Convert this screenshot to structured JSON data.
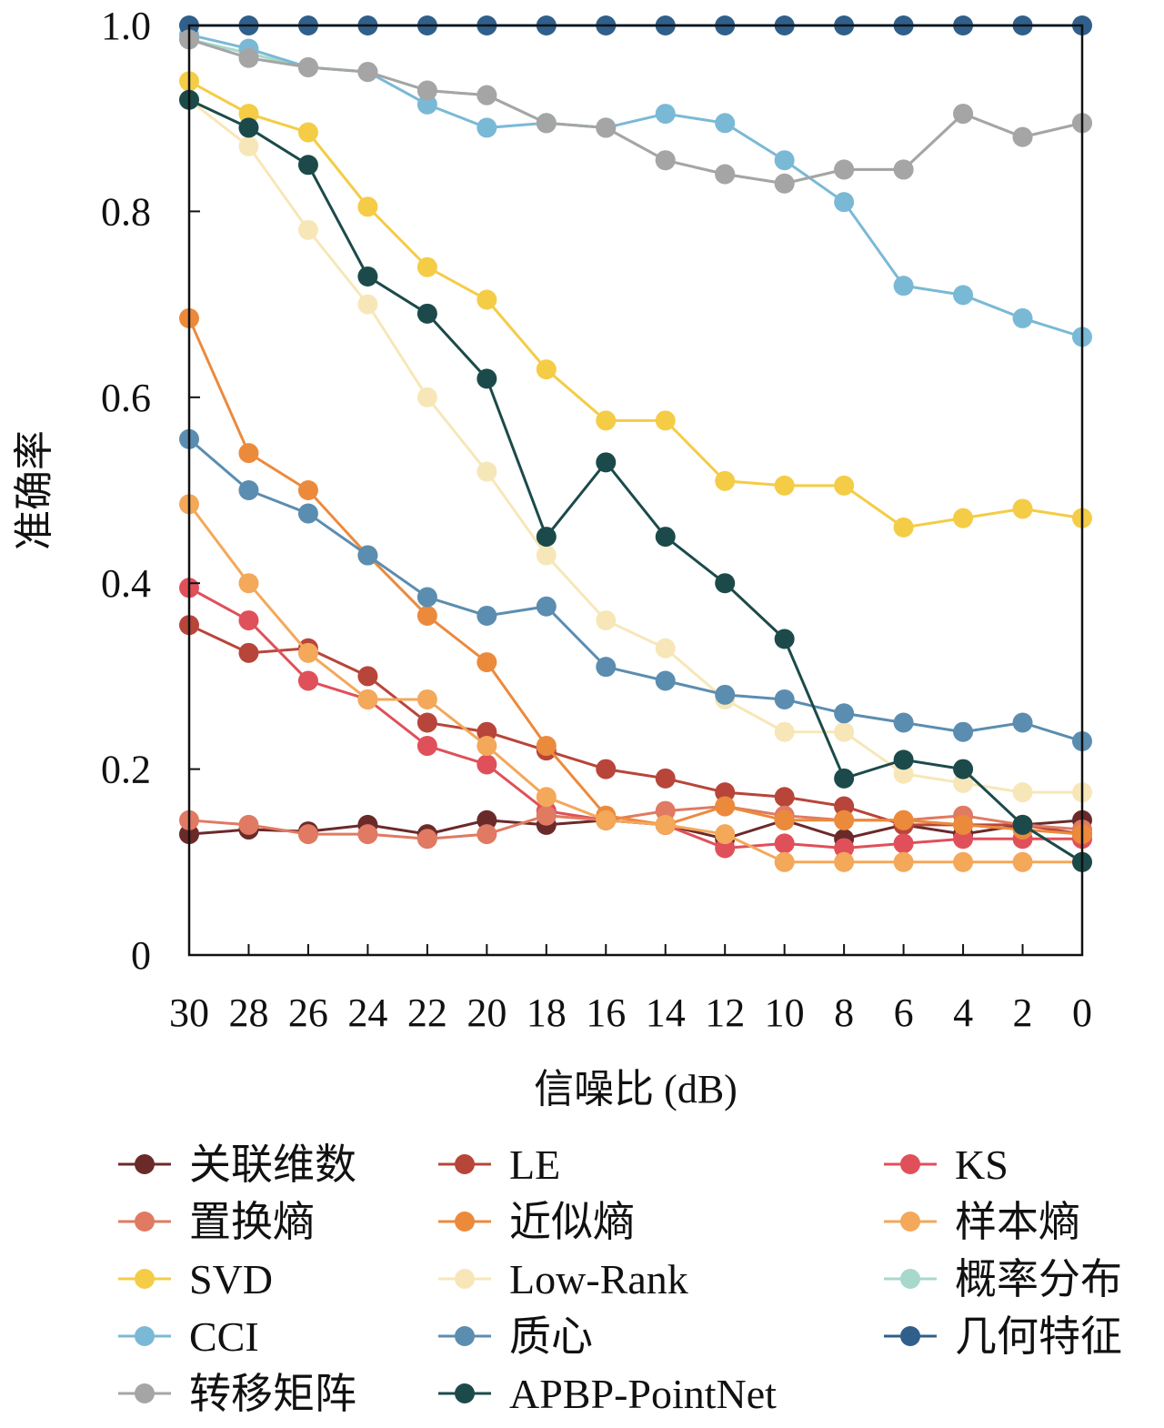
{
  "chart_data": {
    "type": "line",
    "xlabel": "信噪比 (dB)",
    "ylabel": "准确率",
    "x": [
      30,
      28,
      26,
      24,
      22,
      20,
      18,
      16,
      14,
      12,
      10,
      8,
      6,
      4,
      2,
      0
    ],
    "x_tick_labels": [
      "30",
      "28",
      "26",
      "24",
      "22",
      "20",
      "18",
      "16",
      "14",
      "12",
      "10",
      "8",
      "6",
      "4",
      "2",
      "0"
    ],
    "ylim": [
      0,
      1
    ],
    "y_ticks": [
      0,
      0.2,
      0.4,
      0.6,
      0.8,
      1.0
    ],
    "y_tick_labels": [
      "0",
      "0.2",
      "0.4",
      "0.6",
      "0.8",
      "1.0"
    ],
    "x_reversed": true,
    "grid": false,
    "legend_position": "bottom",
    "series": [
      {
        "name": "关联维数",
        "color": "#6b2a2a",
        "values": [
          0.13,
          0.135,
          0.133,
          0.14,
          0.13,
          0.145,
          0.14,
          0.145,
          0.14,
          0.125,
          0.145,
          0.125,
          0.14,
          0.13,
          0.14,
          0.145
        ]
      },
      {
        "name": "LE",
        "color": "#b8453a",
        "values": [
          0.355,
          0.325,
          0.33,
          0.3,
          0.25,
          0.24,
          0.22,
          0.2,
          0.19,
          0.175,
          0.17,
          0.16,
          0.14,
          0.14,
          0.14,
          0.13
        ]
      },
      {
        "name": "KS",
        "color": "#e0505a",
        "values": [
          0.395,
          0.36,
          0.295,
          0.275,
          0.225,
          0.205,
          0.155,
          0.145,
          0.14,
          0.115,
          0.12,
          0.115,
          0.12,
          0.125,
          0.125,
          0.125
        ]
      },
      {
        "name": "置换熵",
        "color": "#e07a62",
        "values": [
          0.145,
          0.14,
          0.13,
          0.13,
          0.125,
          0.13,
          0.15,
          0.145,
          0.155,
          0.16,
          0.15,
          0.145,
          0.145,
          0.15,
          0.14,
          0.135
        ]
      },
      {
        "name": "近似熵",
        "color": "#ec8a3c",
        "values": [
          0.685,
          0.54,
          0.5,
          0.43,
          0.365,
          0.315,
          0.225,
          0.15,
          0.14,
          0.16,
          0.145,
          0.145,
          0.145,
          0.14,
          0.135,
          0.13
        ]
      },
      {
        "name": "样本熵",
        "color": "#f3a85a",
        "values": [
          0.485,
          0.4,
          0.325,
          0.275,
          0.275,
          0.225,
          0.17,
          0.145,
          0.14,
          0.13,
          0.1,
          0.1,
          0.1,
          0.1,
          0.1,
          0.1
        ]
      },
      {
        "name": "SVD",
        "color": "#f4cc46",
        "values": [
          0.94,
          0.905,
          0.885,
          0.805,
          0.74,
          0.705,
          0.63,
          0.575,
          0.575,
          0.51,
          0.505,
          0.505,
          0.46,
          0.47,
          0.48,
          0.47
        ]
      },
      {
        "name": "Low-Rank",
        "color": "#f7e7b8",
        "values": [
          0.92,
          0.87,
          0.78,
          0.7,
          0.6,
          0.52,
          0.43,
          0.36,
          0.33,
          0.275,
          0.24,
          0.24,
          0.195,
          0.185,
          0.175,
          0.175
        ]
      },
      {
        "name": "概率分布",
        "color": "#a8d8cb",
        "values": [
          0.985,
          0.97,
          0.955,
          0.95,
          0.93,
          0.925,
          0.895,
          0.89,
          0.855,
          0.84,
          0.83,
          0.845,
          0.845,
          0.905,
          0.88,
          0.895
        ]
      },
      {
        "name": "CCI",
        "color": "#7ab9d6",
        "values": [
          0.99,
          0.975,
          0.955,
          0.95,
          0.915,
          0.89,
          0.895,
          0.89,
          0.905,
          0.895,
          0.855,
          0.81,
          0.72,
          0.71,
          0.685,
          0.665
        ]
      },
      {
        "name": "质心",
        "color": "#5b8db0",
        "values": [
          0.555,
          0.5,
          0.475,
          0.43,
          0.385,
          0.365,
          0.375,
          0.31,
          0.295,
          0.28,
          0.275,
          0.26,
          0.25,
          0.24,
          0.25,
          0.23
        ]
      },
      {
        "name": "几何特征",
        "color": "#2f5f8a",
        "values": [
          1.0,
          1.0,
          1.0,
          1.0,
          1.0,
          1.0,
          1.0,
          1.0,
          1.0,
          1.0,
          1.0,
          1.0,
          1.0,
          1.0,
          1.0,
          1.0
        ]
      },
      {
        "name": "转移矩阵",
        "color": "#a5a5a5",
        "values": [
          0.985,
          0.965,
          0.955,
          0.95,
          0.93,
          0.925,
          0.895,
          0.89,
          0.855,
          0.84,
          0.83,
          0.845,
          0.845,
          0.905,
          0.88,
          0.895
        ]
      },
      {
        "name": "APBP-PointNet",
        "color": "#1c4a4a",
        "values": [
          0.92,
          0.89,
          0.85,
          0.73,
          0.69,
          0.62,
          0.45,
          0.53,
          0.45,
          0.4,
          0.34,
          0.19,
          0.21,
          0.2,
          0.14,
          0.1
        ]
      }
    ]
  }
}
